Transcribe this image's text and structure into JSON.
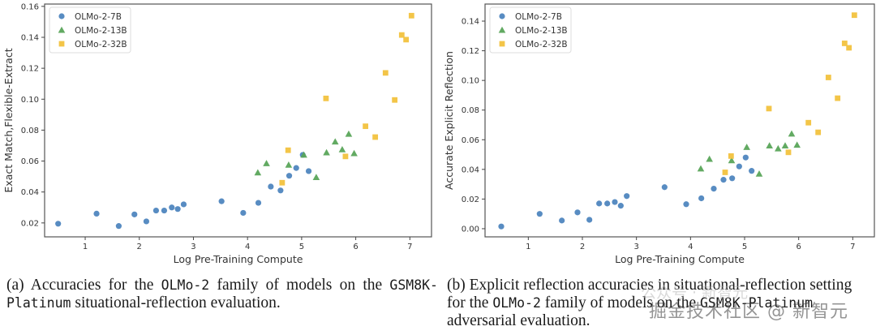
{
  "chart_data": [
    {
      "type": "scatter",
      "panel": "a",
      "title": "",
      "xlabel": "Log Pre-Training Compute",
      "ylabel": "Exact Match,Flexible-Extract",
      "xlim": [
        0.25,
        7.4
      ],
      "ylim": [
        0.011,
        0.1615
      ],
      "xticks": [
        1,
        2,
        3,
        4,
        5,
        6,
        7
      ],
      "xtick_labels": [
        "1",
        "2",
        "3",
        "4",
        "5",
        "6",
        "7"
      ],
      "yticks": [
        0.02,
        0.04,
        0.06,
        0.08,
        0.1,
        0.12,
        0.14,
        0.16
      ],
      "ytick_labels": [
        "0.02",
        "0.04",
        "0.06",
        "0.08",
        "0.10",
        "0.12",
        "0.14",
        "0.16"
      ],
      "grid": false,
      "legend_position": "top-left",
      "series": [
        {
          "name": "OLMo-2-7B",
          "marker": "circle",
          "color": "#4f86bf",
          "x": [
            0.5,
            1.21,
            1.62,
            1.91,
            2.13,
            2.31,
            2.46,
            2.6,
            2.71,
            2.82,
            3.52,
            3.92,
            4.2,
            4.43,
            4.61,
            4.77,
            4.9,
            5.02,
            5.13
          ],
          "y": [
            0.0195,
            0.026,
            0.018,
            0.0255,
            0.021,
            0.028,
            0.028,
            0.03,
            0.029,
            0.032,
            0.034,
            0.0265,
            0.033,
            0.0435,
            0.041,
            0.0505,
            0.0555,
            0.064,
            0.0535
          ]
        },
        {
          "name": "OLMo-2-13B",
          "marker": "triangle",
          "color": "#5aa55a",
          "x": [
            4.19,
            4.35,
            4.76,
            5.04,
            5.27,
            5.46,
            5.62,
            5.75,
            5.87,
            5.97
          ],
          "y": [
            0.0525,
            0.0585,
            0.0575,
            0.064,
            0.0495,
            0.0655,
            0.0725,
            0.0675,
            0.0775,
            0.065
          ]
        },
        {
          "name": "OLMo-2-32B",
          "marker": "square",
          "color": "#f2c23e",
          "x": [
            4.64,
            4.75,
            5.45,
            5.81,
            6.18,
            6.36,
            6.55,
            6.72,
            6.85,
            6.93,
            7.03
          ],
          "y": [
            0.046,
            0.067,
            0.1005,
            0.063,
            0.0825,
            0.0755,
            0.117,
            0.0995,
            0.1415,
            0.1385,
            0.154
          ]
        }
      ]
    },
    {
      "type": "scatter",
      "panel": "b",
      "title": "",
      "xlabel": "Log Pre-Training Compute",
      "ylabel": "Accurate Explicit Reflection",
      "xlim": [
        0.2,
        7.4
      ],
      "ylim": [
        -0.0055,
        0.1515
      ],
      "xticks": [
        1,
        2,
        3,
        4,
        5,
        6,
        7
      ],
      "xtick_labels": [
        "1",
        "2",
        "3",
        "4",
        "5",
        "6",
        "7"
      ],
      "yticks": [
        0.0,
        0.02,
        0.04,
        0.06,
        0.08,
        0.1,
        0.12,
        0.14
      ],
      "ytick_labels": [
        "0.00",
        "0.02",
        "0.04",
        "0.06",
        "0.08",
        "0.10",
        "0.12",
        "0.14"
      ],
      "grid": false,
      "legend_position": "top-left",
      "series": [
        {
          "name": "OLMo-2-7B",
          "marker": "circle",
          "color": "#4f86bf",
          "x": [
            0.5,
            1.21,
            1.62,
            1.91,
            2.13,
            2.31,
            2.46,
            2.6,
            2.71,
            2.82,
            3.52,
            3.92,
            4.2,
            4.43,
            4.61,
            4.77,
            4.9,
            5.02,
            5.13
          ],
          "y": [
            0.0015,
            0.01,
            0.0055,
            0.011,
            0.006,
            0.017,
            0.017,
            0.018,
            0.0155,
            0.022,
            0.028,
            0.0165,
            0.0205,
            0.027,
            0.033,
            0.034,
            0.042,
            0.048,
            0.039
          ]
        },
        {
          "name": "OLMo-2-13B",
          "marker": "triangle",
          "color": "#5aa55a",
          "x": [
            4.19,
            4.35,
            4.76,
            5.04,
            5.27,
            5.46,
            5.62,
            5.75,
            5.87,
            5.97
          ],
          "y": [
            0.0405,
            0.047,
            0.046,
            0.055,
            0.037,
            0.056,
            0.054,
            0.056,
            0.064,
            0.0565
          ]
        },
        {
          "name": "OLMo-2-32B",
          "marker": "square",
          "color": "#f2c23e",
          "x": [
            4.64,
            4.75,
            5.45,
            5.81,
            6.18,
            6.36,
            6.55,
            6.72,
            6.85,
            6.93,
            7.03
          ],
          "y": [
            0.038,
            0.049,
            0.081,
            0.0515,
            0.0715,
            0.065,
            0.102,
            0.088,
            0.125,
            0.122,
            0.144
          ]
        }
      ]
    }
  ],
  "captions": {
    "a": {
      "label": "(a)",
      "part1": " Accuracies for the ",
      "code1": "OLMo-2",
      "part2": " family of models on the ",
      "code2": "GSM8K-Platinum",
      "part3": " situational-reflection evaluation."
    },
    "b": {
      "label": "(b)",
      "part1": " Explicit reflection accuracies in situational-reflection setting",
      "part2": "for the ",
      "code1": "OLMo-2",
      "part3": " family of models on the ",
      "code2": "GSM8K-Platinum",
      "part4": "adversarial evaluation."
    }
  },
  "watermark": {
    "text": "掘金技术社区 @ 新智元",
    "faint_text": "公众号 · 新智元"
  }
}
